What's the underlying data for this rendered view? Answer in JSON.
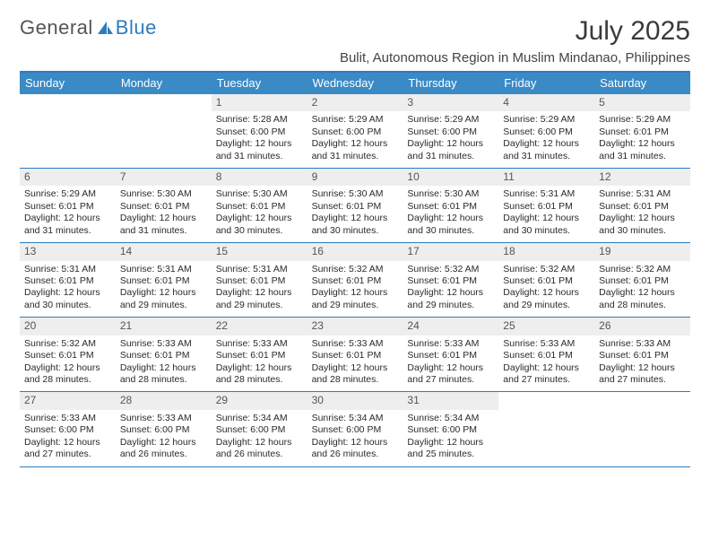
{
  "brand": {
    "word1": "General",
    "word2": "Blue"
  },
  "title": "July 2025",
  "subtitle": "Bulit, Autonomous Region in Muslim Mindanao, Philippines",
  "colors": {
    "header_bg": "#3a8ac6",
    "header_text": "#ffffff",
    "border": "#2f7bbf",
    "daynum_bg": "#eeeeee",
    "text": "#2a2a2a",
    "page_bg": "#ffffff"
  },
  "typography": {
    "title_fontsize": 30,
    "subtitle_fontsize": 15,
    "dayhead_fontsize": 13,
    "cell_fontsize": 10.5
  },
  "layout": {
    "columns": 7,
    "rows": 5,
    "cell_min_height": 82
  },
  "day_names": [
    "Sunday",
    "Monday",
    "Tuesday",
    "Wednesday",
    "Thursday",
    "Friday",
    "Saturday"
  ],
  "weeks": [
    [
      {
        "n": "",
        "lines": []
      },
      {
        "n": "",
        "lines": []
      },
      {
        "n": "1",
        "lines": [
          "Sunrise: 5:28 AM",
          "Sunset: 6:00 PM",
          "Daylight: 12 hours and 31 minutes."
        ]
      },
      {
        "n": "2",
        "lines": [
          "Sunrise: 5:29 AM",
          "Sunset: 6:00 PM",
          "Daylight: 12 hours and 31 minutes."
        ]
      },
      {
        "n": "3",
        "lines": [
          "Sunrise: 5:29 AM",
          "Sunset: 6:00 PM",
          "Daylight: 12 hours and 31 minutes."
        ]
      },
      {
        "n": "4",
        "lines": [
          "Sunrise: 5:29 AM",
          "Sunset: 6:00 PM",
          "Daylight: 12 hours and 31 minutes."
        ]
      },
      {
        "n": "5",
        "lines": [
          "Sunrise: 5:29 AM",
          "Sunset: 6:01 PM",
          "Daylight: 12 hours and 31 minutes."
        ]
      }
    ],
    [
      {
        "n": "6",
        "lines": [
          "Sunrise: 5:29 AM",
          "Sunset: 6:01 PM",
          "Daylight: 12 hours and 31 minutes."
        ]
      },
      {
        "n": "7",
        "lines": [
          "Sunrise: 5:30 AM",
          "Sunset: 6:01 PM",
          "Daylight: 12 hours and 31 minutes."
        ]
      },
      {
        "n": "8",
        "lines": [
          "Sunrise: 5:30 AM",
          "Sunset: 6:01 PM",
          "Daylight: 12 hours and 30 minutes."
        ]
      },
      {
        "n": "9",
        "lines": [
          "Sunrise: 5:30 AM",
          "Sunset: 6:01 PM",
          "Daylight: 12 hours and 30 minutes."
        ]
      },
      {
        "n": "10",
        "lines": [
          "Sunrise: 5:30 AM",
          "Sunset: 6:01 PM",
          "Daylight: 12 hours and 30 minutes."
        ]
      },
      {
        "n": "11",
        "lines": [
          "Sunrise: 5:31 AM",
          "Sunset: 6:01 PM",
          "Daylight: 12 hours and 30 minutes."
        ]
      },
      {
        "n": "12",
        "lines": [
          "Sunrise: 5:31 AM",
          "Sunset: 6:01 PM",
          "Daylight: 12 hours and 30 minutes."
        ]
      }
    ],
    [
      {
        "n": "13",
        "lines": [
          "Sunrise: 5:31 AM",
          "Sunset: 6:01 PM",
          "Daylight: 12 hours and 30 minutes."
        ]
      },
      {
        "n": "14",
        "lines": [
          "Sunrise: 5:31 AM",
          "Sunset: 6:01 PM",
          "Daylight: 12 hours and 29 minutes."
        ]
      },
      {
        "n": "15",
        "lines": [
          "Sunrise: 5:31 AM",
          "Sunset: 6:01 PM",
          "Daylight: 12 hours and 29 minutes."
        ]
      },
      {
        "n": "16",
        "lines": [
          "Sunrise: 5:32 AM",
          "Sunset: 6:01 PM",
          "Daylight: 12 hours and 29 minutes."
        ]
      },
      {
        "n": "17",
        "lines": [
          "Sunrise: 5:32 AM",
          "Sunset: 6:01 PM",
          "Daylight: 12 hours and 29 minutes."
        ]
      },
      {
        "n": "18",
        "lines": [
          "Sunrise: 5:32 AM",
          "Sunset: 6:01 PM",
          "Daylight: 12 hours and 29 minutes."
        ]
      },
      {
        "n": "19",
        "lines": [
          "Sunrise: 5:32 AM",
          "Sunset: 6:01 PM",
          "Daylight: 12 hours and 28 minutes."
        ]
      }
    ],
    [
      {
        "n": "20",
        "lines": [
          "Sunrise: 5:32 AM",
          "Sunset: 6:01 PM",
          "Daylight: 12 hours and 28 minutes."
        ]
      },
      {
        "n": "21",
        "lines": [
          "Sunrise: 5:33 AM",
          "Sunset: 6:01 PM",
          "Daylight: 12 hours and 28 minutes."
        ]
      },
      {
        "n": "22",
        "lines": [
          "Sunrise: 5:33 AM",
          "Sunset: 6:01 PM",
          "Daylight: 12 hours and 28 minutes."
        ]
      },
      {
        "n": "23",
        "lines": [
          "Sunrise: 5:33 AM",
          "Sunset: 6:01 PM",
          "Daylight: 12 hours and 28 minutes."
        ]
      },
      {
        "n": "24",
        "lines": [
          "Sunrise: 5:33 AM",
          "Sunset: 6:01 PM",
          "Daylight: 12 hours and 27 minutes."
        ]
      },
      {
        "n": "25",
        "lines": [
          "Sunrise: 5:33 AM",
          "Sunset: 6:01 PM",
          "Daylight: 12 hours and 27 minutes."
        ]
      },
      {
        "n": "26",
        "lines": [
          "Sunrise: 5:33 AM",
          "Sunset: 6:01 PM",
          "Daylight: 12 hours and 27 minutes."
        ]
      }
    ],
    [
      {
        "n": "27",
        "lines": [
          "Sunrise: 5:33 AM",
          "Sunset: 6:00 PM",
          "Daylight: 12 hours and 27 minutes."
        ]
      },
      {
        "n": "28",
        "lines": [
          "Sunrise: 5:33 AM",
          "Sunset: 6:00 PM",
          "Daylight: 12 hours and 26 minutes."
        ]
      },
      {
        "n": "29",
        "lines": [
          "Sunrise: 5:34 AM",
          "Sunset: 6:00 PM",
          "Daylight: 12 hours and 26 minutes."
        ]
      },
      {
        "n": "30",
        "lines": [
          "Sunrise: 5:34 AM",
          "Sunset: 6:00 PM",
          "Daylight: 12 hours and 26 minutes."
        ]
      },
      {
        "n": "31",
        "lines": [
          "Sunrise: 5:34 AM",
          "Sunset: 6:00 PM",
          "Daylight: 12 hours and 25 minutes."
        ]
      },
      {
        "n": "",
        "lines": []
      },
      {
        "n": "",
        "lines": []
      }
    ]
  ]
}
